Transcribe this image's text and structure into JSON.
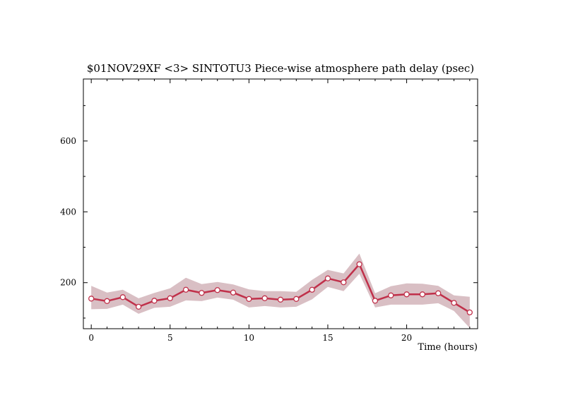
{
  "chart_data": {
    "type": "line",
    "title": "$01NOV29XF <3>  SINTOTU3  Piece-wise atmosphere path delay (psec)",
    "xlabel": "Time (hours)",
    "ylabel": "",
    "xlim": [
      -0.5,
      24.5
    ],
    "ylim": [
      70,
      775
    ],
    "x_ticks": [
      0,
      5,
      10,
      15,
      20
    ],
    "y_ticks": [
      200,
      400,
      600
    ],
    "grid": false,
    "legend": "none",
    "colors": {
      "line": "#c0304a",
      "band": "#d9bfc4",
      "marker_fill": "#ffffff",
      "axis": "#000000"
    },
    "series": [
      {
        "x": [
          0,
          1,
          2,
          3,
          4,
          5,
          6,
          7,
          8,
          9,
          10,
          11,
          12,
          13,
          14,
          15,
          16,
          17,
          18,
          19,
          20,
          21,
          22,
          23,
          24
        ],
        "values": [
          155,
          148,
          159,
          132,
          149,
          156,
          180,
          171,
          179,
          172,
          154,
          156,
          152,
          154,
          180,
          212,
          201,
          252,
          149,
          164,
          167,
          167,
          170,
          143,
          116
        ],
        "upper": [
          191,
          172,
          180,
          156,
          171,
          184,
          214,
          196,
          202,
          195,
          181,
          176,
          176,
          174,
          208,
          236,
          226,
          282,
          170,
          190,
          198,
          197,
          191,
          164,
          160
        ],
        "lower": [
          125,
          126,
          138,
          112,
          129,
          132,
          150,
          148,
          158,
          152,
          130,
          134,
          130,
          132,
          153,
          188,
          176,
          225,
          130,
          138,
          138,
          138,
          142,
          120,
          72
        ]
      }
    ]
  }
}
